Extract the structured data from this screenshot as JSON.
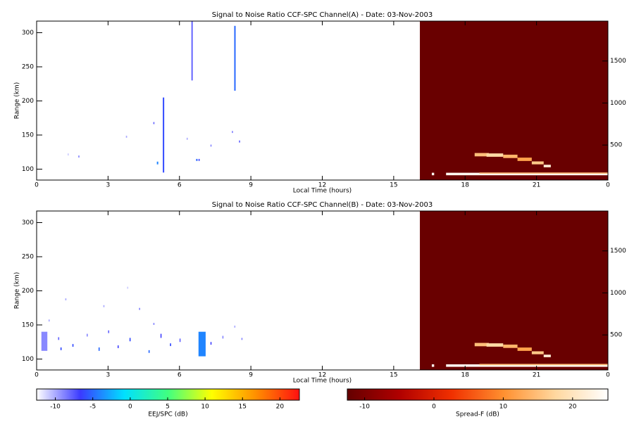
{
  "chart_data": [
    {
      "type": "heatmap",
      "title": "Signal to Noise Ratio CCF-SPC Channel(A) - Date: 03-Nov-2003",
      "xlabel": "Local Time (hours)",
      "ylabel": "Range (km)",
      "xlim": [
        0,
        24
      ],
      "xticks": [
        0,
        3,
        6,
        9,
        12,
        15,
        18,
        21,
        {
          "value": 24,
          "label": "0"
        }
      ],
      "ylim": [
        84,
        317
      ],
      "yticks": [
        100,
        150,
        200,
        250,
        300
      ],
      "y2lim": [
        83,
        1975
      ],
      "y2ticks": [
        500,
        1000,
        1500
      ],
      "series": [
        {
          "cmap": 0,
          "x": [
            5.3,
            6.5,
            8.3,
            1.3,
            1.75,
            3.75,
            4.9,
            5.05,
            6.3,
            6.8,
            7.3,
            8.2,
            8.5,
            6.7
          ],
          "y": [
            95,
            230,
            215,
            120,
            117,
            146,
            166,
            107,
            143,
            112,
            133,
            153,
            139,
            112
          ],
          "widths": [
            0.06,
            0.06,
            0.06,
            0.05,
            0.05,
            0.05,
            0.05,
            0.06,
            0.05,
            0.05,
            0.05,
            0.05,
            0.05,
            0.06
          ],
          "heights": [
            110,
            87,
            95,
            3,
            3,
            3,
            3,
            4,
            3,
            3,
            3,
            3,
            3,
            3
          ],
          "values": [
            -6,
            -8,
            -5,
            -11,
            -9,
            -10,
            -8,
            -4,
            -10,
            -7,
            -9,
            -9,
            -8,
            -5
          ]
        },
        {
          "cmap": 1,
          "axis": "y2",
          "x": [
            16.1,
            18.4,
            18.9,
            19.6,
            20.2,
            20.8,
            21.3,
            17.2,
            18.6,
            16.6
          ],
          "y": [
            83,
            365,
            360,
            345,
            310,
            270,
            235,
            140,
            158,
            140
          ],
          "widths": [
            7.9,
            0.6,
            0.7,
            0.6,
            0.6,
            0.5,
            0.3,
            6.8,
            5.4,
            0.1
          ],
          "heights": [
            1892,
            40,
            40,
            40,
            40,
            35,
            30,
            30,
            15,
            30
          ],
          "values": [
            -12,
            15,
            18,
            14,
            12,
            16,
            22,
            24,
            15,
            24
          ]
        }
      ]
    },
    {
      "type": "heatmap",
      "title": "Signal to Noise Ratio CCF-SPC Channel(B) - Date: 03-Nov-2003",
      "xlabel": "Local Time (hours)",
      "ylabel": "Range (km)",
      "xlim": [
        0,
        24
      ],
      "xticks": [
        0,
        3,
        6,
        9,
        12,
        15,
        18,
        21,
        {
          "value": 24,
          "label": "0"
        }
      ],
      "ylim": [
        84,
        317
      ],
      "yticks": [
        100,
        150,
        200,
        250,
        300
      ],
      "y2lim": [
        83,
        1975
      ],
      "y2ticks": [
        500,
        1000,
        1500
      ],
      "series": [
        {
          "cmap": 0,
          "x": [
            0.2,
            6.8,
            0.9,
            1.2,
            1.5,
            2.1,
            2.6,
            3.0,
            3.4,
            3.9,
            4.3,
            4.7,
            5.2,
            5.6,
            6.0,
            7.3,
            7.8,
            8.3,
            8.6,
            1.0,
            2.8,
            3.8,
            4.9,
            0.5
          ],
          "y": [
            112,
            104,
            128,
            186,
            118,
            133,
            112,
            138,
            116,
            126,
            172,
            109,
            131,
            119,
            125,
            121,
            130,
            146,
            128,
            113,
            176,
            203,
            150,
            155
          ],
          "widths": [
            0.25,
            0.3,
            0.05,
            0.05,
            0.05,
            0.05,
            0.05,
            0.05,
            0.05,
            0.05,
            0.05,
            0.05,
            0.05,
            0.05,
            0.05,
            0.05,
            0.05,
            0.05,
            0.05,
            0.05,
            0.05,
            0.05,
            0.05,
            0.05
          ],
          "heights": [
            28,
            36,
            4,
            3,
            4,
            4,
            5,
            4,
            4,
            5,
            3,
            4,
            6,
            4,
            5,
            4,
            4,
            3,
            3,
            4,
            3,
            3,
            3,
            3
          ],
          "values": [
            -9,
            -4,
            -8,
            -10,
            -6,
            -9,
            -5,
            -8,
            -7,
            -6,
            -9,
            -5,
            -7,
            -6,
            -8,
            -7,
            -9,
            -10,
            -9,
            -6,
            -10,
            -11,
            -9,
            -10
          ]
        },
        {
          "cmap": 1,
          "axis": "y2",
          "x": [
            16.1,
            18.4,
            18.9,
            19.6,
            20.2,
            20.8,
            21.3,
            17.2,
            18.6,
            16.6
          ],
          "y": [
            83,
            365,
            360,
            345,
            310,
            270,
            235,
            120,
            140,
            120
          ],
          "widths": [
            7.9,
            0.6,
            0.7,
            0.6,
            0.6,
            0.5,
            0.3,
            6.8,
            5.4,
            0.1
          ],
          "heights": [
            1892,
            40,
            40,
            40,
            40,
            35,
            30,
            30,
            15,
            30
          ],
          "values": [
            -12,
            15,
            18,
            14,
            12,
            16,
            22,
            24,
            15,
            24
          ]
        }
      ]
    }
  ],
  "colorbars": [
    {
      "label": "EEJ/SPC (dB)",
      "lim": [
        -12.5,
        22.6
      ],
      "ticks": [
        -10,
        -5,
        0,
        5,
        10,
        15,
        20
      ],
      "colors": [
        "#ffffff",
        "#3a3aff",
        "#00e0ff",
        "#40ff80",
        "#ffff00",
        "#ff9000",
        "#ff1010"
      ]
    },
    {
      "label": "Spread-F (dB)",
      "lim": [
        -12.5,
        25.1
      ],
      "ticks": [
        -10,
        0,
        10,
        20
      ],
      "colors": [
        "#640000",
        "#b00000",
        "#f03000",
        "#ff9030",
        "#ffd8a0",
        "#ffffff"
      ]
    }
  ]
}
